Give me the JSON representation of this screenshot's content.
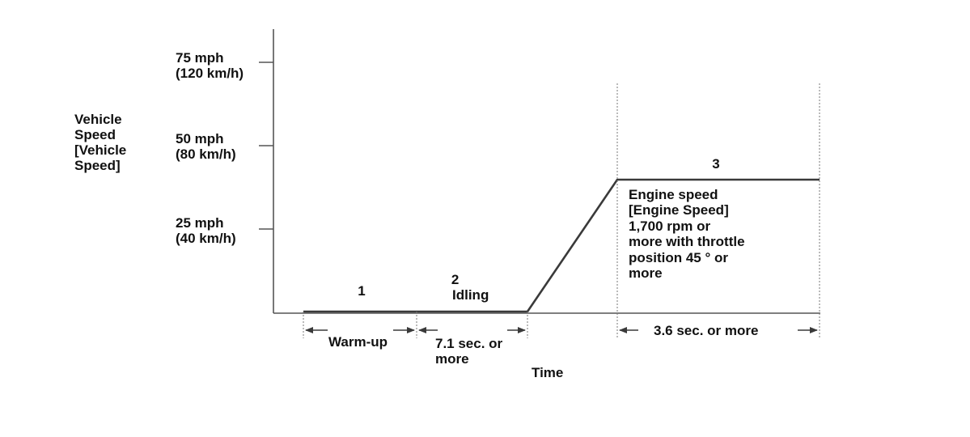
{
  "y_axis": {
    "label": [
      "Vehicle",
      "Speed",
      "[Vehicle",
      "Speed]"
    ],
    "ticks": [
      {
        "lines": [
          "75 mph",
          "(120 km/h)"
        ]
      },
      {
        "lines": [
          "50 mph",
          "(80 km/h)"
        ]
      },
      {
        "lines": [
          "25 mph",
          "(40 km/h)"
        ]
      }
    ]
  },
  "x_axis": {
    "label": "Time"
  },
  "phases": {
    "p1": {
      "number": "1",
      "duration": "Warm-up"
    },
    "p2": {
      "number": "2",
      "name": "Idling",
      "duration": [
        "7.1 sec. or",
        "more"
      ]
    },
    "p3": {
      "number": "3",
      "description": [
        "Engine speed",
        "[Engine Speed]",
        "1,700 rpm or",
        "more with throttle",
        "position 45 ° or",
        "more"
      ],
      "duration": "3.6 sec. or more"
    }
  },
  "colors": {
    "line": "#3a3a3a",
    "text": "#111111",
    "guide": "#777777"
  }
}
